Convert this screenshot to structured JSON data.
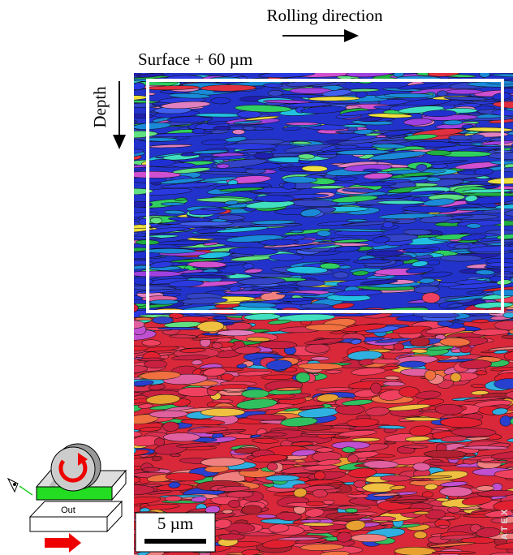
{
  "annotations": {
    "rolling_direction": "Rolling direction",
    "surface_depth": "Surface + 60 µm",
    "depth": "Depth",
    "scale_bar": "5 µm",
    "watermark": "ATEX"
  },
  "schematic": {
    "label": "Out"
  }
}
